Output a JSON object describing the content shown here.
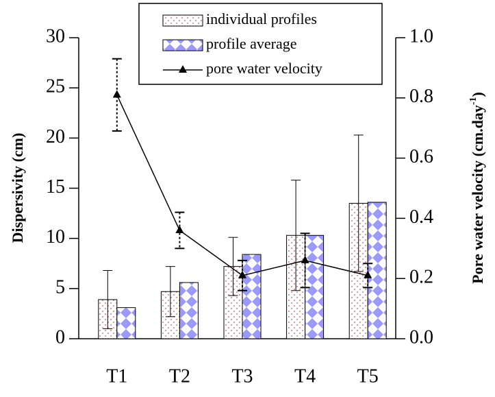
{
  "chart_data": {
    "type": "bar",
    "categories": [
      "T1",
      "T2",
      "T3",
      "T4",
      "T5"
    ],
    "ylabel": "Dispersivity (cm)",
    "y2label": "Pore water velocity (cm.day",
    "y2label_sup": "-1",
    "y2label_end": ")",
    "ylim": [
      0,
      30
    ],
    "yticks": [
      0,
      5,
      10,
      15,
      20,
      25,
      30
    ],
    "y2lim": [
      0,
      1.0
    ],
    "y2ticks": [
      {
        "value": 0,
        "label": "0.0"
      },
      0.2,
      0.4,
      0.6,
      0.8,
      {
        "value": 1.0,
        "label": "1.0"
      }
    ],
    "series": [
      {
        "name": "individual profiles",
        "type": "bar",
        "color": "#d08080",
        "values": [
          3.9,
          4.7,
          7.2,
          10.3,
          13.5
        ],
        "errors": [
          2.9,
          2.5,
          2.9,
          5.5,
          6.8
        ]
      },
      {
        "name": "profile average",
        "type": "bar",
        "color": "#9999ff",
        "values": [
          3.1,
          5.6,
          8.4,
          10.3,
          13.6
        ]
      },
      {
        "name": "pore water velocity",
        "type": "line",
        "axis": "y2",
        "color": "#000000",
        "values": [
          0.81,
          0.36,
          0.21,
          0.26,
          0.21
        ],
        "errors": [
          0.12,
          0.06,
          0.05,
          0.09,
          0.04
        ]
      }
    ]
  }
}
